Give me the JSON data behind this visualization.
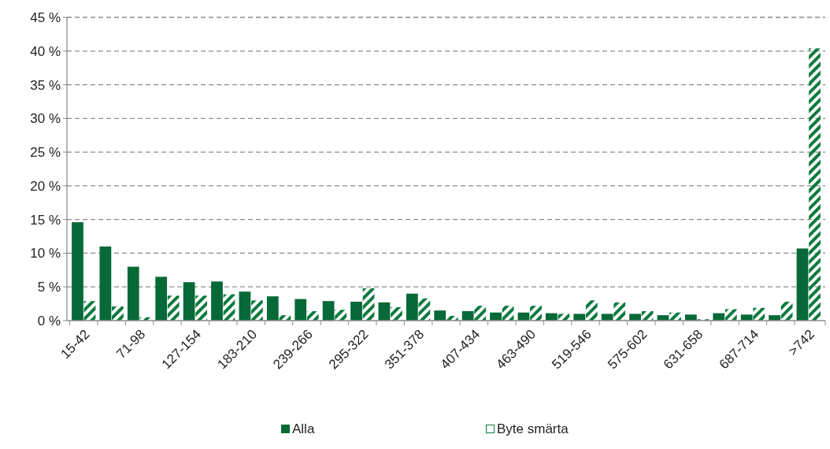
{
  "chart_data": {
    "type": "bar",
    "categories": [
      "15-42",
      null,
      "71-98",
      null,
      "127-154",
      null,
      "183-210",
      null,
      "239-266",
      null,
      "295-322",
      null,
      "351-378",
      null,
      "407-434",
      null,
      "463-490",
      null,
      "519-546",
      null,
      "575-602",
      null,
      "631-658",
      null,
      "687-714",
      null,
      ">742"
    ],
    "series": [
      {
        "name": "Alla",
        "color": "#076937",
        "values": [
          14.6,
          11.0,
          8.0,
          6.5,
          5.7,
          5.8,
          4.3,
          3.6,
          3.2,
          2.9,
          2.8,
          2.7,
          4.0,
          1.5,
          1.4,
          1.2,
          1.2,
          1.1,
          1.0,
          1.0,
          1.0,
          0.8,
          0.9,
          1.1,
          0.9,
          0.8,
          10.7
        ]
      },
      {
        "name": "Byte smärta",
        "color": "#0b7a3e",
        "values": [
          2.9,
          2.1,
          0.5,
          3.7,
          3.7,
          3.9,
          3.0,
          0.8,
          1.4,
          1.6,
          4.8,
          2.0,
          3.3,
          0.7,
          2.2,
          2.2,
          2.2,
          1.0,
          3.0,
          2.7,
          1.4,
          1.2,
          0.2,
          1.7,
          1.9,
          2.8,
          40.4
        ]
      }
    ],
    "ylim": [
      0,
      45
    ],
    "yticks": [
      {
        "value": 0,
        "label": "0 %"
      },
      {
        "value": 5,
        "label": "5 %"
      },
      {
        "value": 10,
        "label": "10 %"
      },
      {
        "value": 15,
        "label": "15 %"
      },
      {
        "value": 20,
        "label": "20 %"
      },
      {
        "value": 25,
        "label": "25 %"
      },
      {
        "value": 30,
        "label": "30 %"
      },
      {
        "value": 35,
        "label": "35 %"
      },
      {
        "value": 40,
        "label": "40 %"
      },
      {
        "value": 45,
        "label": "45 %"
      }
    ],
    "grid": "y",
    "legend": "bottom"
  }
}
